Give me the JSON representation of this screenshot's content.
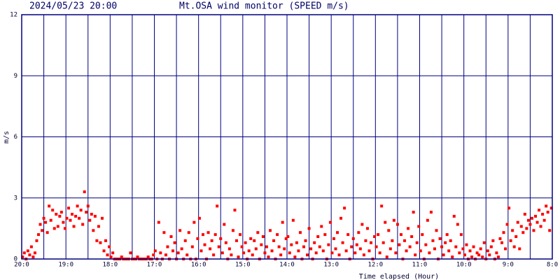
{
  "chart_data": {
    "type": "scatter",
    "title": "Mt.OSA wind monitor (SPEED m/s)",
    "subtitle": "2024/05/23 20:00",
    "x_label": "Time elapsed (Hour)",
    "y_label": "m/s",
    "color": "#ff0000",
    "grid": true,
    "xlim": [
      0,
      12
    ],
    "ylim": [
      0,
      12
    ],
    "yticks": [
      0,
      3,
      6,
      9,
      12
    ],
    "xticks": [
      {
        "value": 0,
        "label": "20:0"
      },
      {
        "value": 1,
        "label": "19:0"
      },
      {
        "value": 2,
        "label": "18:0"
      },
      {
        "value": 3,
        "label": "17:0"
      },
      {
        "value": 4,
        "label": "16:0"
      },
      {
        "value": 5,
        "label": "15:0"
      },
      {
        "value": 6,
        "label": "14:0"
      },
      {
        "value": 7,
        "label": "13:0"
      },
      {
        "value": 8,
        "label": "12:0"
      },
      {
        "value": 9,
        "label": "11:0"
      },
      {
        "value": 10,
        "label": "10:0"
      },
      {
        "value": 11,
        "label": "9:0"
      },
      {
        "value": 12,
        "label": "8:0"
      }
    ],
    "x_minor_ticks": [
      0.5,
      1.5,
      2.5,
      3.5,
      4.5,
      5.5,
      6.5,
      7.5,
      8.5,
      9.5,
      10.5,
      11.5
    ],
    "x": [
      0.02,
      0.06,
      0.1,
      0.14,
      0.18,
      0.22,
      0.26,
      0.3,
      0.34,
      0.38,
      0.42,
      0.46,
      0.5,
      0.54,
      0.58,
      0.62,
      0.66,
      0.7,
      0.74,
      0.78,
      0.82,
      0.86,
      0.9,
      0.94,
      0.98,
      1.02,
      1.06,
      1.1,
      1.14,
      1.18,
      1.22,
      1.26,
      1.3,
      1.34,
      1.38,
      1.42,
      1.46,
      1.5,
      1.54,
      1.58,
      1.62,
      1.66,
      1.7,
      1.74,
      1.78,
      1.82,
      1.86,
      1.9,
      1.94,
      1.98,
      2.02,
      2.06,
      2.1,
      2.14,
      2.18,
      2.22,
      2.26,
      2.3,
      2.34,
      2.38,
      2.42,
      2.46,
      2.5,
      2.54,
      2.58,
      2.62,
      2.66,
      2.7,
      2.74,
      2.78,
      2.82,
      2.86,
      2.9,
      2.94,
      2.98,
      3.02,
      3.06,
      3.1,
      3.14,
      3.18,
      3.22,
      3.26,
      3.3,
      3.34,
      3.38,
      3.42,
      3.46,
      3.5,
      3.54,
      3.58,
      3.62,
      3.66,
      3.7,
      3.74,
      3.78,
      3.82,
      3.86,
      3.9,
      3.94,
      3.98,
      4.02,
      4.06,
      4.1,
      4.14,
      4.18,
      4.22,
      4.26,
      4.3,
      4.34,
      4.38,
      4.42,
      4.46,
      4.5,
      4.54,
      4.58,
      4.62,
      4.66,
      4.7,
      4.74,
      4.78,
      4.82,
      4.86,
      4.9,
      4.94,
      4.98,
      5.02,
      5.06,
      5.1,
      5.14,
      5.18,
      5.22,
      5.26,
      5.3,
      5.34,
      5.38,
      5.42,
      5.46,
      5.5,
      5.54,
      5.58,
      5.62,
      5.66,
      5.7,
      5.74,
      5.78,
      5.82,
      5.86,
      5.9,
      5.94,
      5.98,
      6.02,
      6.06,
      6.1,
      6.14,
      6.18,
      6.22,
      6.26,
      6.3,
      6.34,
      6.38,
      6.42,
      6.46,
      6.5,
      6.54,
      6.58,
      6.62,
      6.66,
      6.7,
      6.74,
      6.78,
      6.82,
      6.86,
      6.9,
      6.94,
      6.98,
      7.02,
      7.06,
      7.1,
      7.14,
      7.18,
      7.22,
      7.26,
      7.3,
      7.34,
      7.38,
      7.42,
      7.46,
      7.5,
      7.54,
      7.58,
      7.62,
      7.66,
      7.7,
      7.74,
      7.78,
      7.82,
      7.86,
      7.9,
      7.94,
      7.98,
      8.02,
      8.06,
      8.1,
      8.14,
      8.18,
      8.22,
      8.26,
      8.3,
      8.34,
      8.38,
      8.42,
      8.46,
      8.5,
      8.54,
      8.58,
      8.62,
      8.66,
      8.7,
      8.74,
      8.78,
      8.82,
      8.86,
      8.9,
      8.94,
      8.98,
      9.02,
      9.06,
      9.1,
      9.14,
      9.18,
      9.22,
      9.26,
      9.3,
      9.34,
      9.38,
      9.42,
      9.46,
      9.5,
      9.54,
      9.58,
      9.62,
      9.66,
      9.7,
      9.74,
      9.78,
      9.82,
      9.86,
      9.9,
      9.94,
      9.98,
      10.02,
      10.06,
      10.1,
      10.14,
      10.18,
      10.22,
      10.26,
      10.3,
      10.34,
      10.38,
      10.42,
      10.46,
      10.5,
      10.54,
      10.58,
      10.62,
      10.66,
      10.7,
      10.74,
      10.78,
      10.82,
      10.86,
      10.9,
      10.94,
      10.98,
      11.02,
      11.06,
      11.1,
      11.14,
      11.18,
      11.22,
      11.26,
      11.3,
      11.34,
      11.38,
      11.42,
      11.46,
      11.5,
      11.54,
      11.58,
      11.62,
      11.66,
      11.7,
      11.74,
      11.78,
      11.82,
      11.86,
      11.9,
      11.94,
      11.98
    ],
    "values": [
      0.1,
      0.3,
      0,
      0.4,
      0.2,
      0.6,
      0.1,
      0.3,
      0.9,
      1.2,
      1.7,
      1.4,
      2,
      1.8,
      1.3,
      2.6,
      1.9,
      2.4,
      1.5,
      2.2,
      1.6,
      2.1,
      2.3,
      1.8,
      1.5,
      2,
      2.5,
      1.9,
      2.2,
      1.6,
      2.1,
      2.6,
      2,
      2.4,
      1.7,
      3.3,
      2.3,
      2.6,
      1.9,
      2.2,
      1.4,
      2.1,
      0.9,
      1.6,
      0.8,
      2,
      0.4,
      0.9,
      0.2,
      0.6,
      0.1,
      0.3,
      0,
      0,
      0,
      0,
      0.1,
      0,
      0,
      0,
      0,
      0.3,
      0,
      0,
      0,
      0.1,
      0,
      0,
      0,
      0,
      0,
      0.1,
      0,
      0,
      0.2,
      0.4,
      0,
      1.8,
      0.3,
      0,
      1.3,
      0.2,
      0.6,
      0,
      1.1,
      0.4,
      0.8,
      0,
      0.3,
      1.4,
      0.5,
      0,
      0.9,
      0.2,
      1.3,
      0,
      0.6,
      1.8,
      0,
      1,
      2,
      0.4,
      1.2,
      0.7,
      0,
      1.3,
      0.5,
      0.9,
      0.2,
      1.2,
      2.6,
      0.6,
      1,
      0.3,
      1.7,
      0.8,
      0,
      0.5,
      0.2,
      1.4,
      2.4,
      0.9,
      0.1,
      1.2,
      0.6,
      0.3,
      0.8,
      0,
      0.4,
      1,
      0.2,
      0.9,
      0.5,
      1.3,
      0,
      0.7,
      1.1,
      0.3,
      0.6,
      0.1,
      1.4,
      0.4,
      0.9,
      0,
      1.2,
      0.6,
      0.2,
      1.8,
      0.5,
      1,
      1.1,
      0.3,
      0.7,
      1.9,
      0.1,
      0.8,
      0.4,
      1.3,
      0,
      0.6,
      0.9,
      0.2,
      1.5,
      0.5,
      0,
      0.8,
      0.3,
      1.1,
      0.6,
      1.6,
      0.4,
      1.2,
      0,
      0.7,
      1.8,
      0.3,
      1,
      0.5,
      1.3,
      0.2,
      2,
      0.8,
      2.5,
      0.4,
      1.2,
      0,
      0.6,
      1,
      0.3,
      0.7,
      1.3,
      0.5,
      1.7,
      0.2,
      0.9,
      1.5,
      0.4,
      0.8,
      0,
      1.1,
      0.6,
      1.2,
      0.3,
      2.6,
      0.8,
      1.8,
      0.1,
      1.4,
      0.5,
      0.9,
      1.9,
      0.3,
      1.7,
      0.7,
      1.2,
      0,
      0.9,
      0.4,
      1.5,
      0.6,
      1.1,
      2.3,
      0.2,
      0.8,
      1.6,
      0.4,
      1.2,
      0,
      0.7,
      1.9,
      0.3,
      2.3,
      0.9,
      0.5,
      1.4,
      0,
      1,
      0.6,
      0.2,
      0.8,
      1.2,
      0.4,
      0.9,
      0.1,
      2.1,
      0.6,
      1.7,
      0.3,
      1.2,
      0.5,
      0.2,
      0.7,
      0,
      0.4,
      0.1,
      0.6,
      0,
      0.3,
      0.2,
      0.5,
      0.1,
      0.8,
      0,
      0.4,
      0.2,
      0.6,
      0.9,
      0,
      0.3,
      0.1,
      1,
      0.8,
      1.3,
      0.5,
      1.7,
      2.5,
      0.9,
      1.4,
      0.6,
      1.1,
      1.8,
      0.5,
      1.6,
      1.3,
      2.2,
      1.5,
      1.9,
      1.7,
      2,
      1.4,
      2.1,
      1.8,
      2.4,
      1.6,
      2.2,
      1.9,
      2.6,
      2.3,
      1.4,
      2.5
    ]
  }
}
